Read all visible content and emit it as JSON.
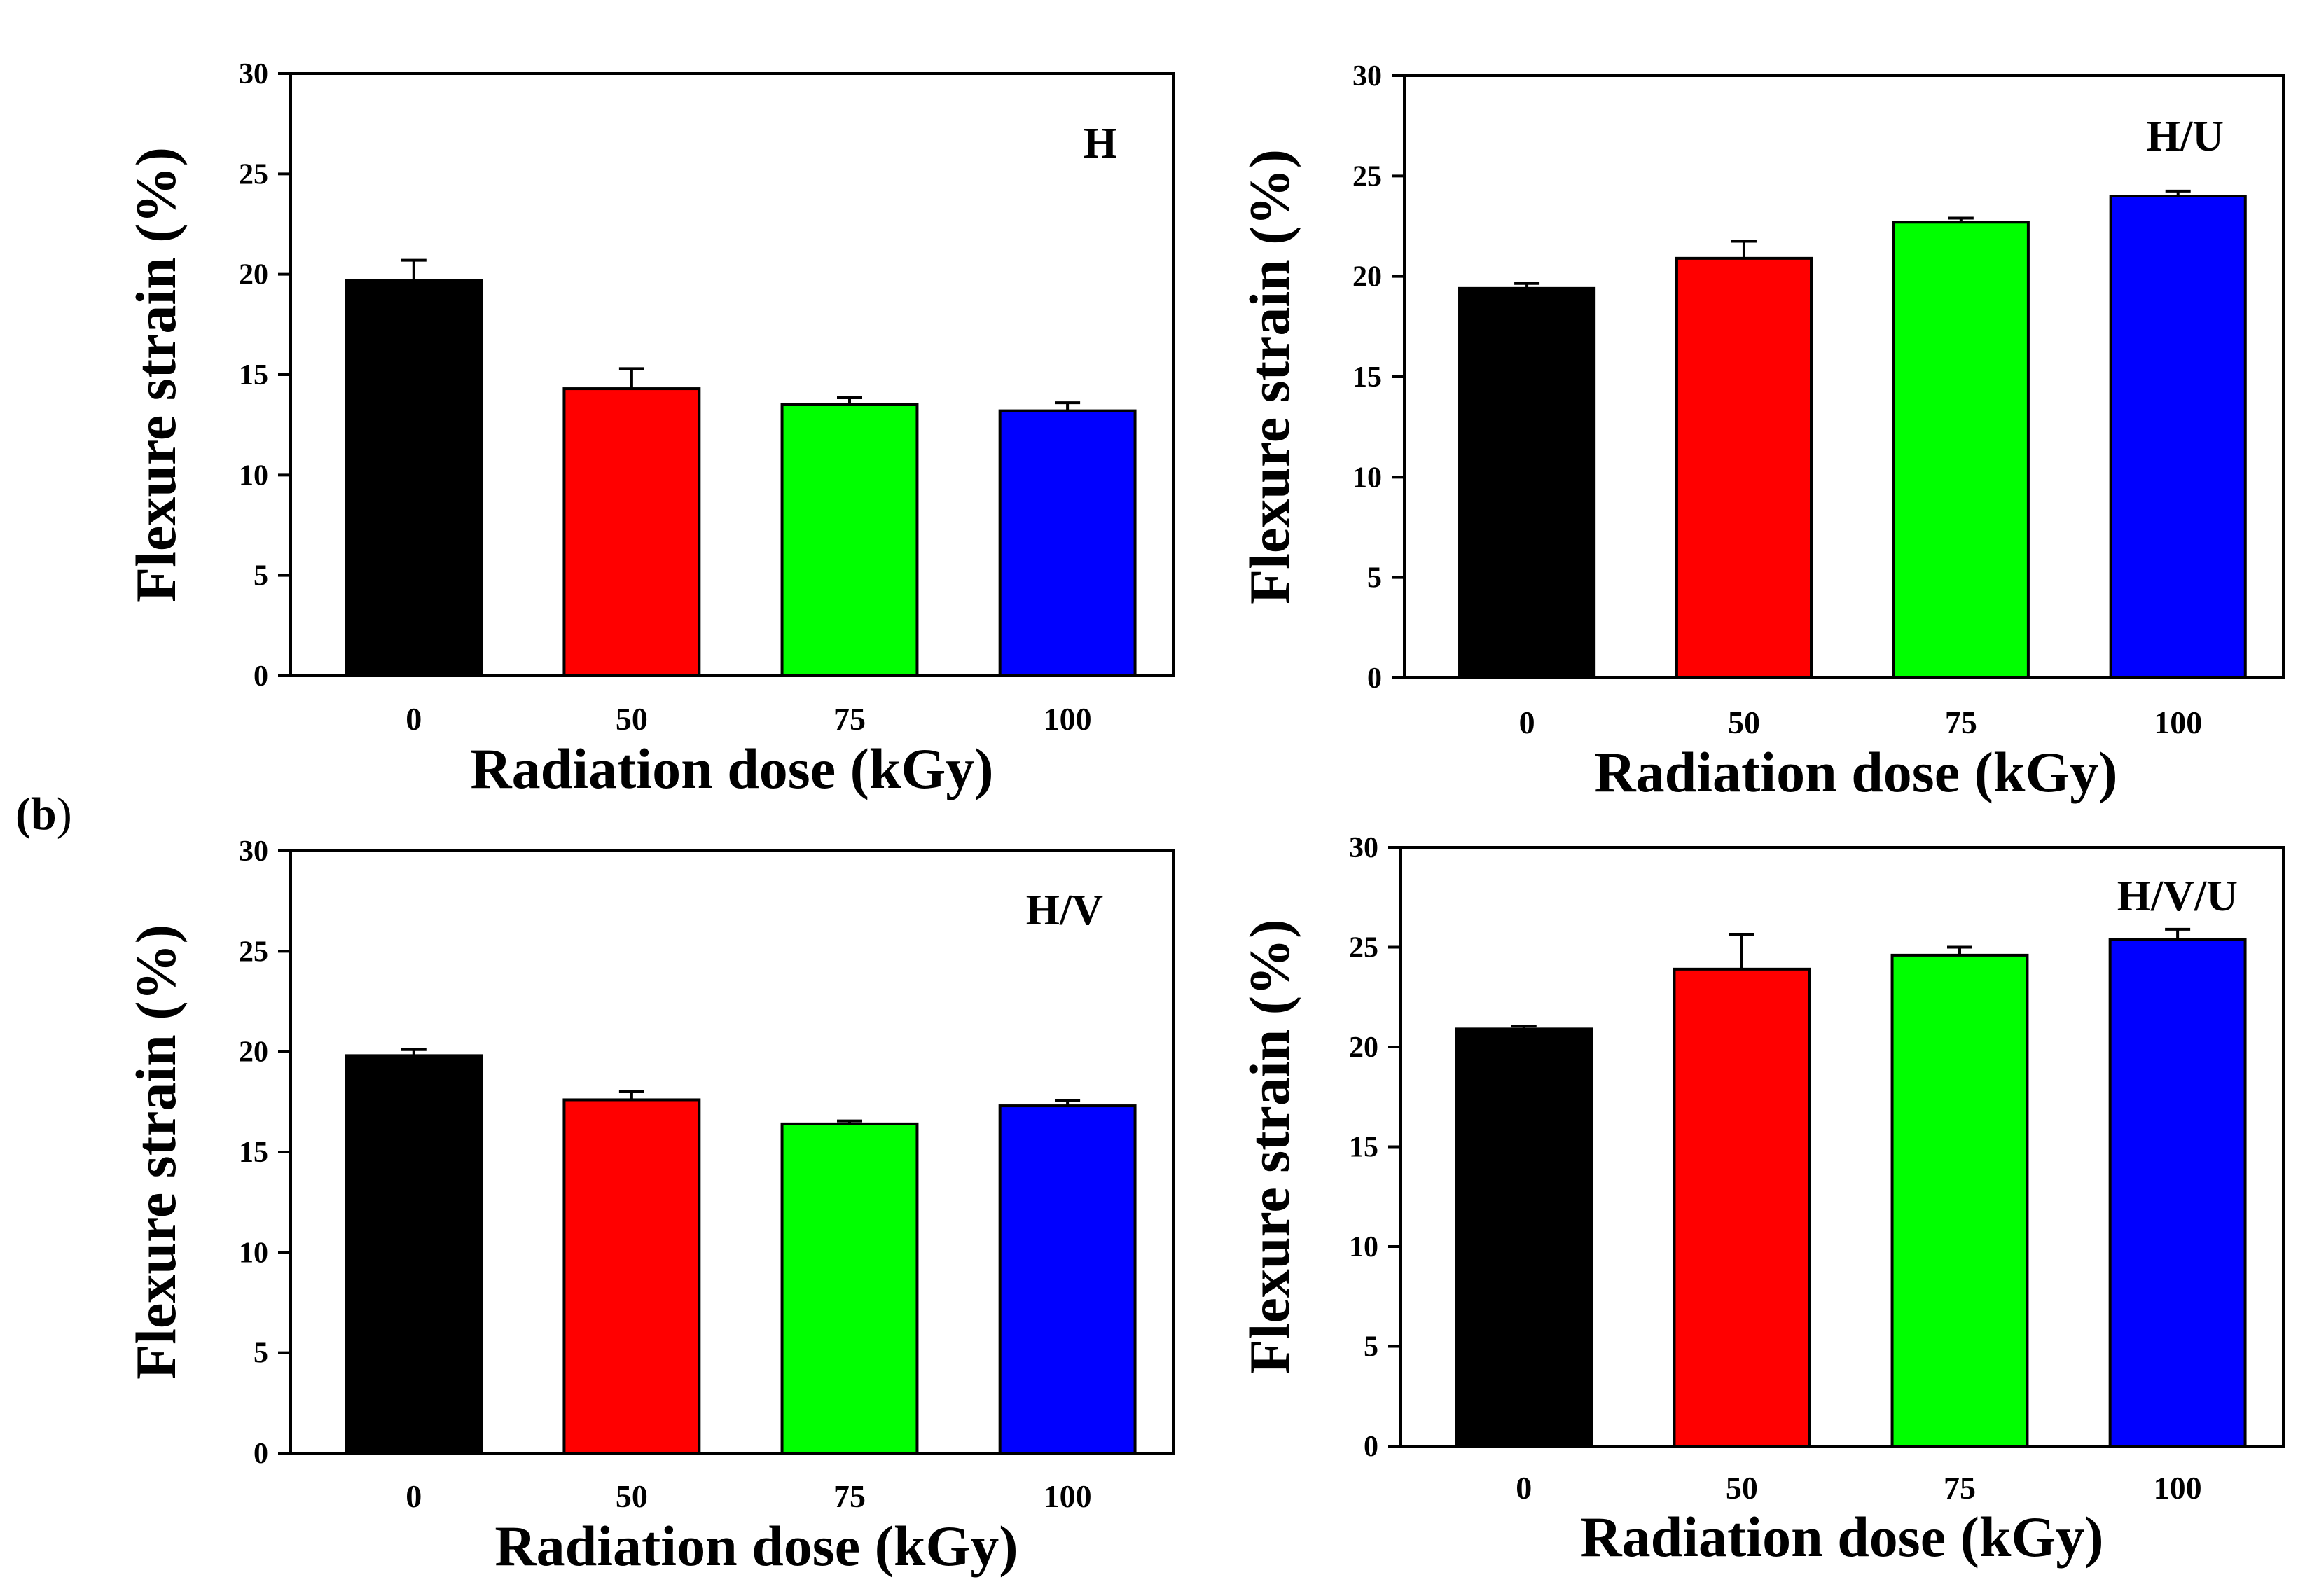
{
  "figure": {
    "panel_label": {
      "open": "(",
      "letter": "b",
      "close": ")"
    }
  },
  "chart_data": [
    {
      "type": "bar",
      "title": "H",
      "xlabel": "Radiation dose (kGy)",
      "ylabel": "Flexure strain (%)",
      "categories": [
        "0",
        "50",
        "75",
        "100"
      ],
      "values": [
        19.7,
        14.3,
        13.5,
        13.2
      ],
      "errors": [
        1.0,
        1.0,
        0.35,
        0.4
      ],
      "bar_colors": [
        "#000000",
        "#ff0000",
        "#00ff00",
        "#0000ff"
      ],
      "ylim": [
        0,
        30
      ],
      "yticks": [
        0,
        5,
        10,
        15,
        20,
        25,
        30
      ]
    },
    {
      "type": "bar",
      "title": "H/U",
      "xlabel": "Radiation dose (kGy)",
      "ylabel": "Flexure strain (%)",
      "categories": [
        "0",
        "50",
        "75",
        "100"
      ],
      "values": [
        19.4,
        20.9,
        22.7,
        24.0
      ],
      "errors": [
        0.25,
        0.85,
        0.2,
        0.25
      ],
      "bar_colors": [
        "#000000",
        "#ff0000",
        "#00ff00",
        "#0000ff"
      ],
      "ylim": [
        0,
        30
      ],
      "yticks": [
        0,
        5,
        10,
        15,
        20,
        25,
        30
      ]
    },
    {
      "type": "bar",
      "title": "H/V",
      "xlabel": "Radiation dose (kGy)",
      "ylabel": "Flexure strain (%)",
      "categories": [
        "0",
        "50",
        "75",
        "100"
      ],
      "values": [
        19.8,
        17.6,
        16.4,
        17.3
      ],
      "errors": [
        0.3,
        0.4,
        0.15,
        0.25
      ],
      "bar_colors": [
        "#000000",
        "#ff0000",
        "#00ff00",
        "#0000ff"
      ],
      "ylim": [
        0,
        30
      ],
      "yticks": [
        0,
        5,
        10,
        15,
        20,
        25,
        30
      ]
    },
    {
      "type": "bar",
      "title": "H/V/U",
      "xlabel": "Radiation dose (kGy)",
      "ylabel": "Flexure strain (%)",
      "categories": [
        "0",
        "50",
        "75",
        "100"
      ],
      "values": [
        20.9,
        23.9,
        24.6,
        25.4
      ],
      "errors": [
        0.15,
        1.75,
        0.4,
        0.5
      ],
      "bar_colors": [
        "#000000",
        "#ff0000",
        "#00ff00",
        "#0000ff"
      ],
      "ylim": [
        0,
        30
      ],
      "yticks": [
        0,
        5,
        10,
        15,
        20,
        25,
        30
      ]
    }
  ]
}
